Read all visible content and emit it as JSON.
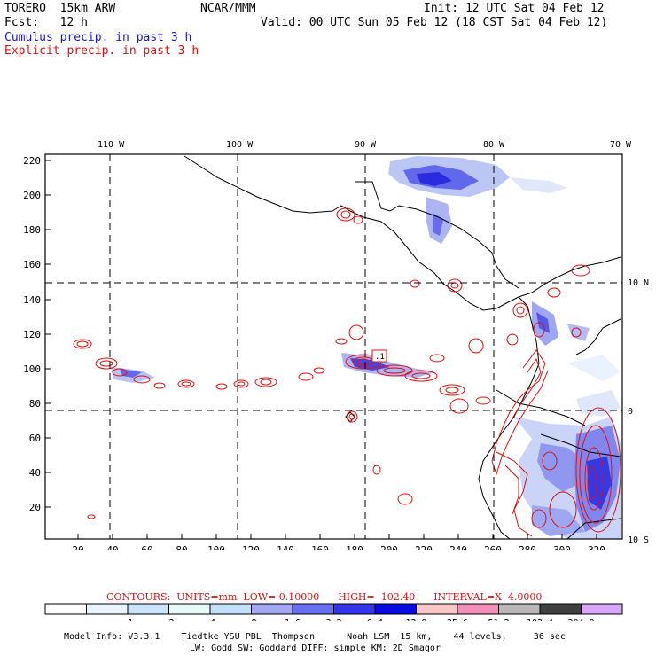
{
  "header": {
    "model_name": "TORERO  15km ARW",
    "org": "NCAR/MMM",
    "init": "Init: 12 UTC Sat 04 Feb 12",
    "fcst": "Fcst:   12 h",
    "valid": "Valid: 00 UTC Sun 05 Feb 12 (18 CST Sat 04 Feb 12)",
    "line_cumulus": "Cumulus precip. in past 3 h",
    "line_explicit": "Explicit precip. in past 3 h"
  },
  "map": {
    "lon_labels": [
      "110 W",
      "100 W",
      "90 W",
      "80 W",
      "70 W"
    ],
    "lat_labels": [
      "10 N",
      "0",
      "10 S"
    ],
    "y_ticks": [
      "220",
      "200",
      "180",
      "160",
      "140",
      "120",
      "100",
      "80",
      "60",
      "40",
      "20"
    ],
    "x_ticks": [
      "20",
      "40",
      "60",
      "80",
      "100",
      "120",
      "140",
      "160",
      "180",
      "200",
      "220",
      "240",
      "260",
      "280",
      "300",
      "320"
    ],
    "label_box": ".1"
  },
  "contours": {
    "label": "CONTOURS:  UNITS=mm  LOW= 0.10000      HIGH=  102.40      INTERVAL=X  4.0000"
  },
  "colorbar": {
    "labels": [
      ".1",
      ".2",
      ".4",
      ".8",
      "1.6",
      "3.2",
      "6.4",
      "12.8",
      "25.6",
      "51.2",
      "102.4",
      "204.8"
    ],
    "unit": "mm",
    "colors": [
      "#ffffff",
      "#eaf4ff",
      "#cce4fb",
      "#e8faf8",
      "#c4e0f8",
      "#a3a8f0",
      "#6a6ef0",
      "#3434e8",
      "#0a0ae0",
      "#f8c8c8",
      "#f090b8",
      "#b8b8b8",
      "#404040",
      "#d8a8f8"
    ]
  },
  "footer": {
    "line1": "Model Info: V3.3.1    Tiedtke YSU PBL  Thompson      Noah LSM  15 km,    44 levels,     36 sec",
    "line2": "LW: Godd SW: Goddard DIFF: simple KM: 2D Smagor"
  }
}
